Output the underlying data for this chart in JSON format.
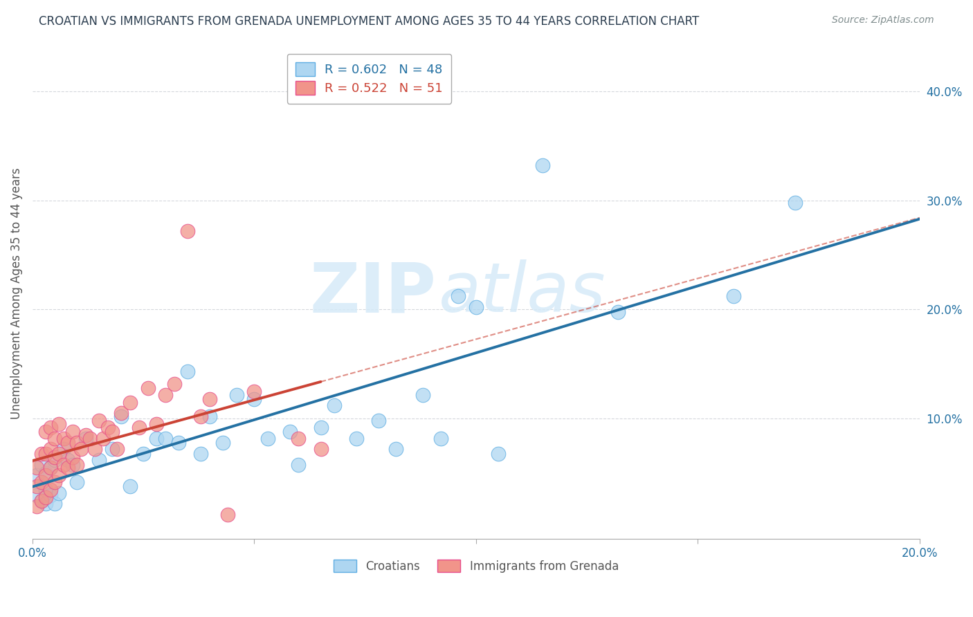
{
  "title": "CROATIAN VS IMMIGRANTS FROM GRENADA UNEMPLOYMENT AMONG AGES 35 TO 44 YEARS CORRELATION CHART",
  "source": "Source: ZipAtlas.com",
  "ylabel": "Unemployment Among Ages 35 to 44 years",
  "blue_label": "Croatians",
  "pink_label": "Immigrants from Grenada",
  "blue_R": 0.602,
  "blue_N": 48,
  "pink_R": 0.522,
  "pink_N": 51,
  "blue_color": "#AED6F1",
  "pink_color": "#F1948A",
  "blue_edge_color": "#5DADE2",
  "pink_edge_color": "#E74C8B",
  "blue_line_color": "#2471A3",
  "pink_line_color": "#CB4335",
  "xlim": [
    0.0,
    0.2
  ],
  "ylim": [
    -0.01,
    0.44
  ],
  "xticks": [
    0.0,
    0.05,
    0.1,
    0.15,
    0.2
  ],
  "xtick_labels": [
    "0.0%",
    "",
    "",
    "",
    "20.0%"
  ],
  "yticks_right": [
    0.1,
    0.2,
    0.3,
    0.4
  ],
  "ytick_labels_right": [
    "10.0%",
    "20.0%",
    "30.0%",
    "40.0%"
  ],
  "blue_x": [
    0.001,
    0.001,
    0.002,
    0.002,
    0.003,
    0.003,
    0.003,
    0.004,
    0.004,
    0.005,
    0.005,
    0.006,
    0.007,
    0.008,
    0.009,
    0.01,
    0.012,
    0.015,
    0.018,
    0.02,
    0.022,
    0.025,
    0.028,
    0.03,
    0.033,
    0.035,
    0.038,
    0.04,
    0.043,
    0.046,
    0.05,
    0.053,
    0.058,
    0.06,
    0.065,
    0.068,
    0.073,
    0.078,
    0.082,
    0.088,
    0.092,
    0.096,
    0.1,
    0.105,
    0.115,
    0.132,
    0.158,
    0.172
  ],
  "blue_y": [
    0.03,
    0.048,
    0.025,
    0.058,
    0.022,
    0.035,
    0.05,
    0.03,
    0.055,
    0.022,
    0.062,
    0.032,
    0.072,
    0.062,
    0.058,
    0.042,
    0.082,
    0.062,
    0.072,
    0.102,
    0.038,
    0.068,
    0.082,
    0.082,
    0.078,
    0.143,
    0.068,
    0.102,
    0.078,
    0.122,
    0.118,
    0.082,
    0.088,
    0.058,
    0.092,
    0.112,
    0.082,
    0.098,
    0.072,
    0.122,
    0.082,
    0.212,
    0.202,
    0.068,
    0.332,
    0.198,
    0.212,
    0.298
  ],
  "pink_x": [
    0.001,
    0.001,
    0.001,
    0.002,
    0.002,
    0.002,
    0.003,
    0.003,
    0.003,
    0.003,
    0.004,
    0.004,
    0.004,
    0.004,
    0.005,
    0.005,
    0.005,
    0.006,
    0.006,
    0.006,
    0.007,
    0.007,
    0.008,
    0.008,
    0.009,
    0.009,
    0.01,
    0.01,
    0.011,
    0.012,
    0.013,
    0.014,
    0.015,
    0.016,
    0.017,
    0.018,
    0.019,
    0.02,
    0.022,
    0.024,
    0.026,
    0.028,
    0.03,
    0.032,
    0.035,
    0.038,
    0.04,
    0.044,
    0.05,
    0.06,
    0.065
  ],
  "pink_y": [
    0.02,
    0.038,
    0.055,
    0.025,
    0.042,
    0.068,
    0.028,
    0.048,
    0.068,
    0.088,
    0.035,
    0.055,
    0.072,
    0.092,
    0.042,
    0.065,
    0.082,
    0.048,
    0.068,
    0.095,
    0.058,
    0.082,
    0.055,
    0.078,
    0.065,
    0.088,
    0.058,
    0.078,
    0.072,
    0.085,
    0.082,
    0.072,
    0.098,
    0.082,
    0.092,
    0.088,
    0.072,
    0.105,
    0.115,
    0.092,
    0.128,
    0.095,
    0.122,
    0.132,
    0.272,
    0.102,
    0.118,
    0.012,
    0.125,
    0.082,
    0.072
  ],
  "watermark_zip": "ZIP",
  "watermark_atlas": "atlas",
  "background_color": "#FFFFFF",
  "grid_color": "#D5D8DC",
  "blue_line_intercept": -0.01,
  "blue_line_slope": 1.55,
  "pink_line_intercept": 0.02,
  "pink_line_slope": 2.5,
  "pink_line_x_end": 0.065
}
